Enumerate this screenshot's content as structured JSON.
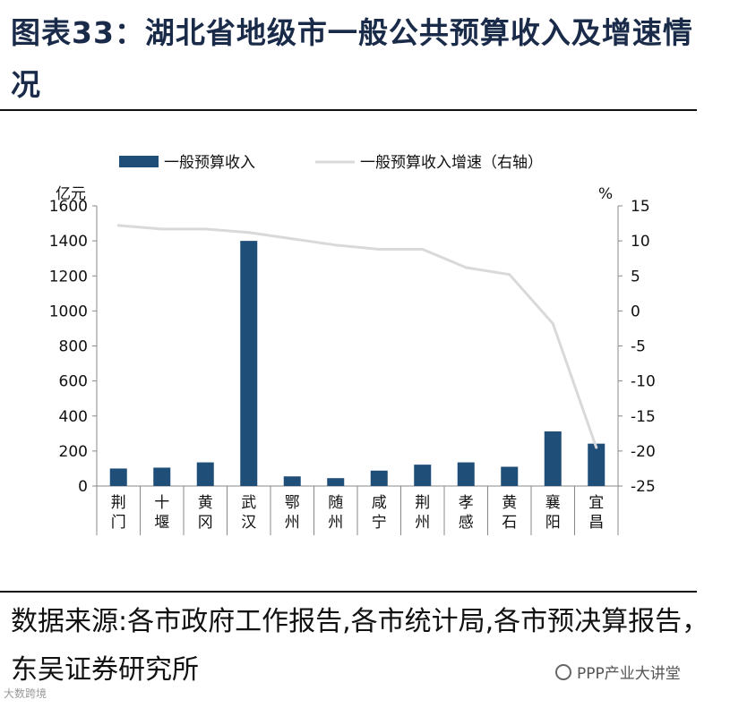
{
  "title": "图表33：湖北省地级市一般公共预算收入及增速情况",
  "source": "数据来源:各市政府工作报告,各市统计局,各市预决算报告，东吴证券研究所",
  "watermark_right": "PPP产业大讲堂",
  "watermark_left": "大数跨境",
  "colors": {
    "bar": "#1f4e79",
    "line": "#d9d9d9",
    "title": "#1a2b4a"
  },
  "chart_data": {
    "type": "bar",
    "categories": [
      "荆门",
      "十堰",
      "黄冈",
      "武汉",
      "鄂州",
      "随州",
      "咸宁",
      "荆州",
      "孝感",
      "黄石",
      "襄阳",
      "宜昌"
    ],
    "series": [
      {
        "name": "一般预算收入",
        "type": "bar",
        "axis": "left",
        "values": [
          100,
          105,
          135,
          1400,
          55,
          45,
          88,
          122,
          135,
          110,
          312,
          242
        ]
      },
      {
        "name": "一般预算收入增速（右轴）",
        "type": "line",
        "axis": "right",
        "values": [
          12.2,
          11.7,
          11.7,
          11.2,
          10.3,
          9.4,
          8.8,
          8.8,
          6.2,
          5.2,
          -1.8,
          -19.5
        ]
      }
    ],
    "ylabel": "亿元",
    "y2label": "%",
    "ylim": [
      0,
      1600
    ],
    "y2lim": [
      -25,
      15
    ],
    "yticks": [
      "0",
      "200",
      "400",
      "600",
      "800",
      "1000",
      "1200",
      "1400",
      "1600"
    ],
    "y2ticks": [
      "-25",
      "-20",
      "-15",
      "-10",
      "-5",
      "0",
      "5",
      "10",
      "15"
    ],
    "legend_position": "top",
    "grid": false
  }
}
